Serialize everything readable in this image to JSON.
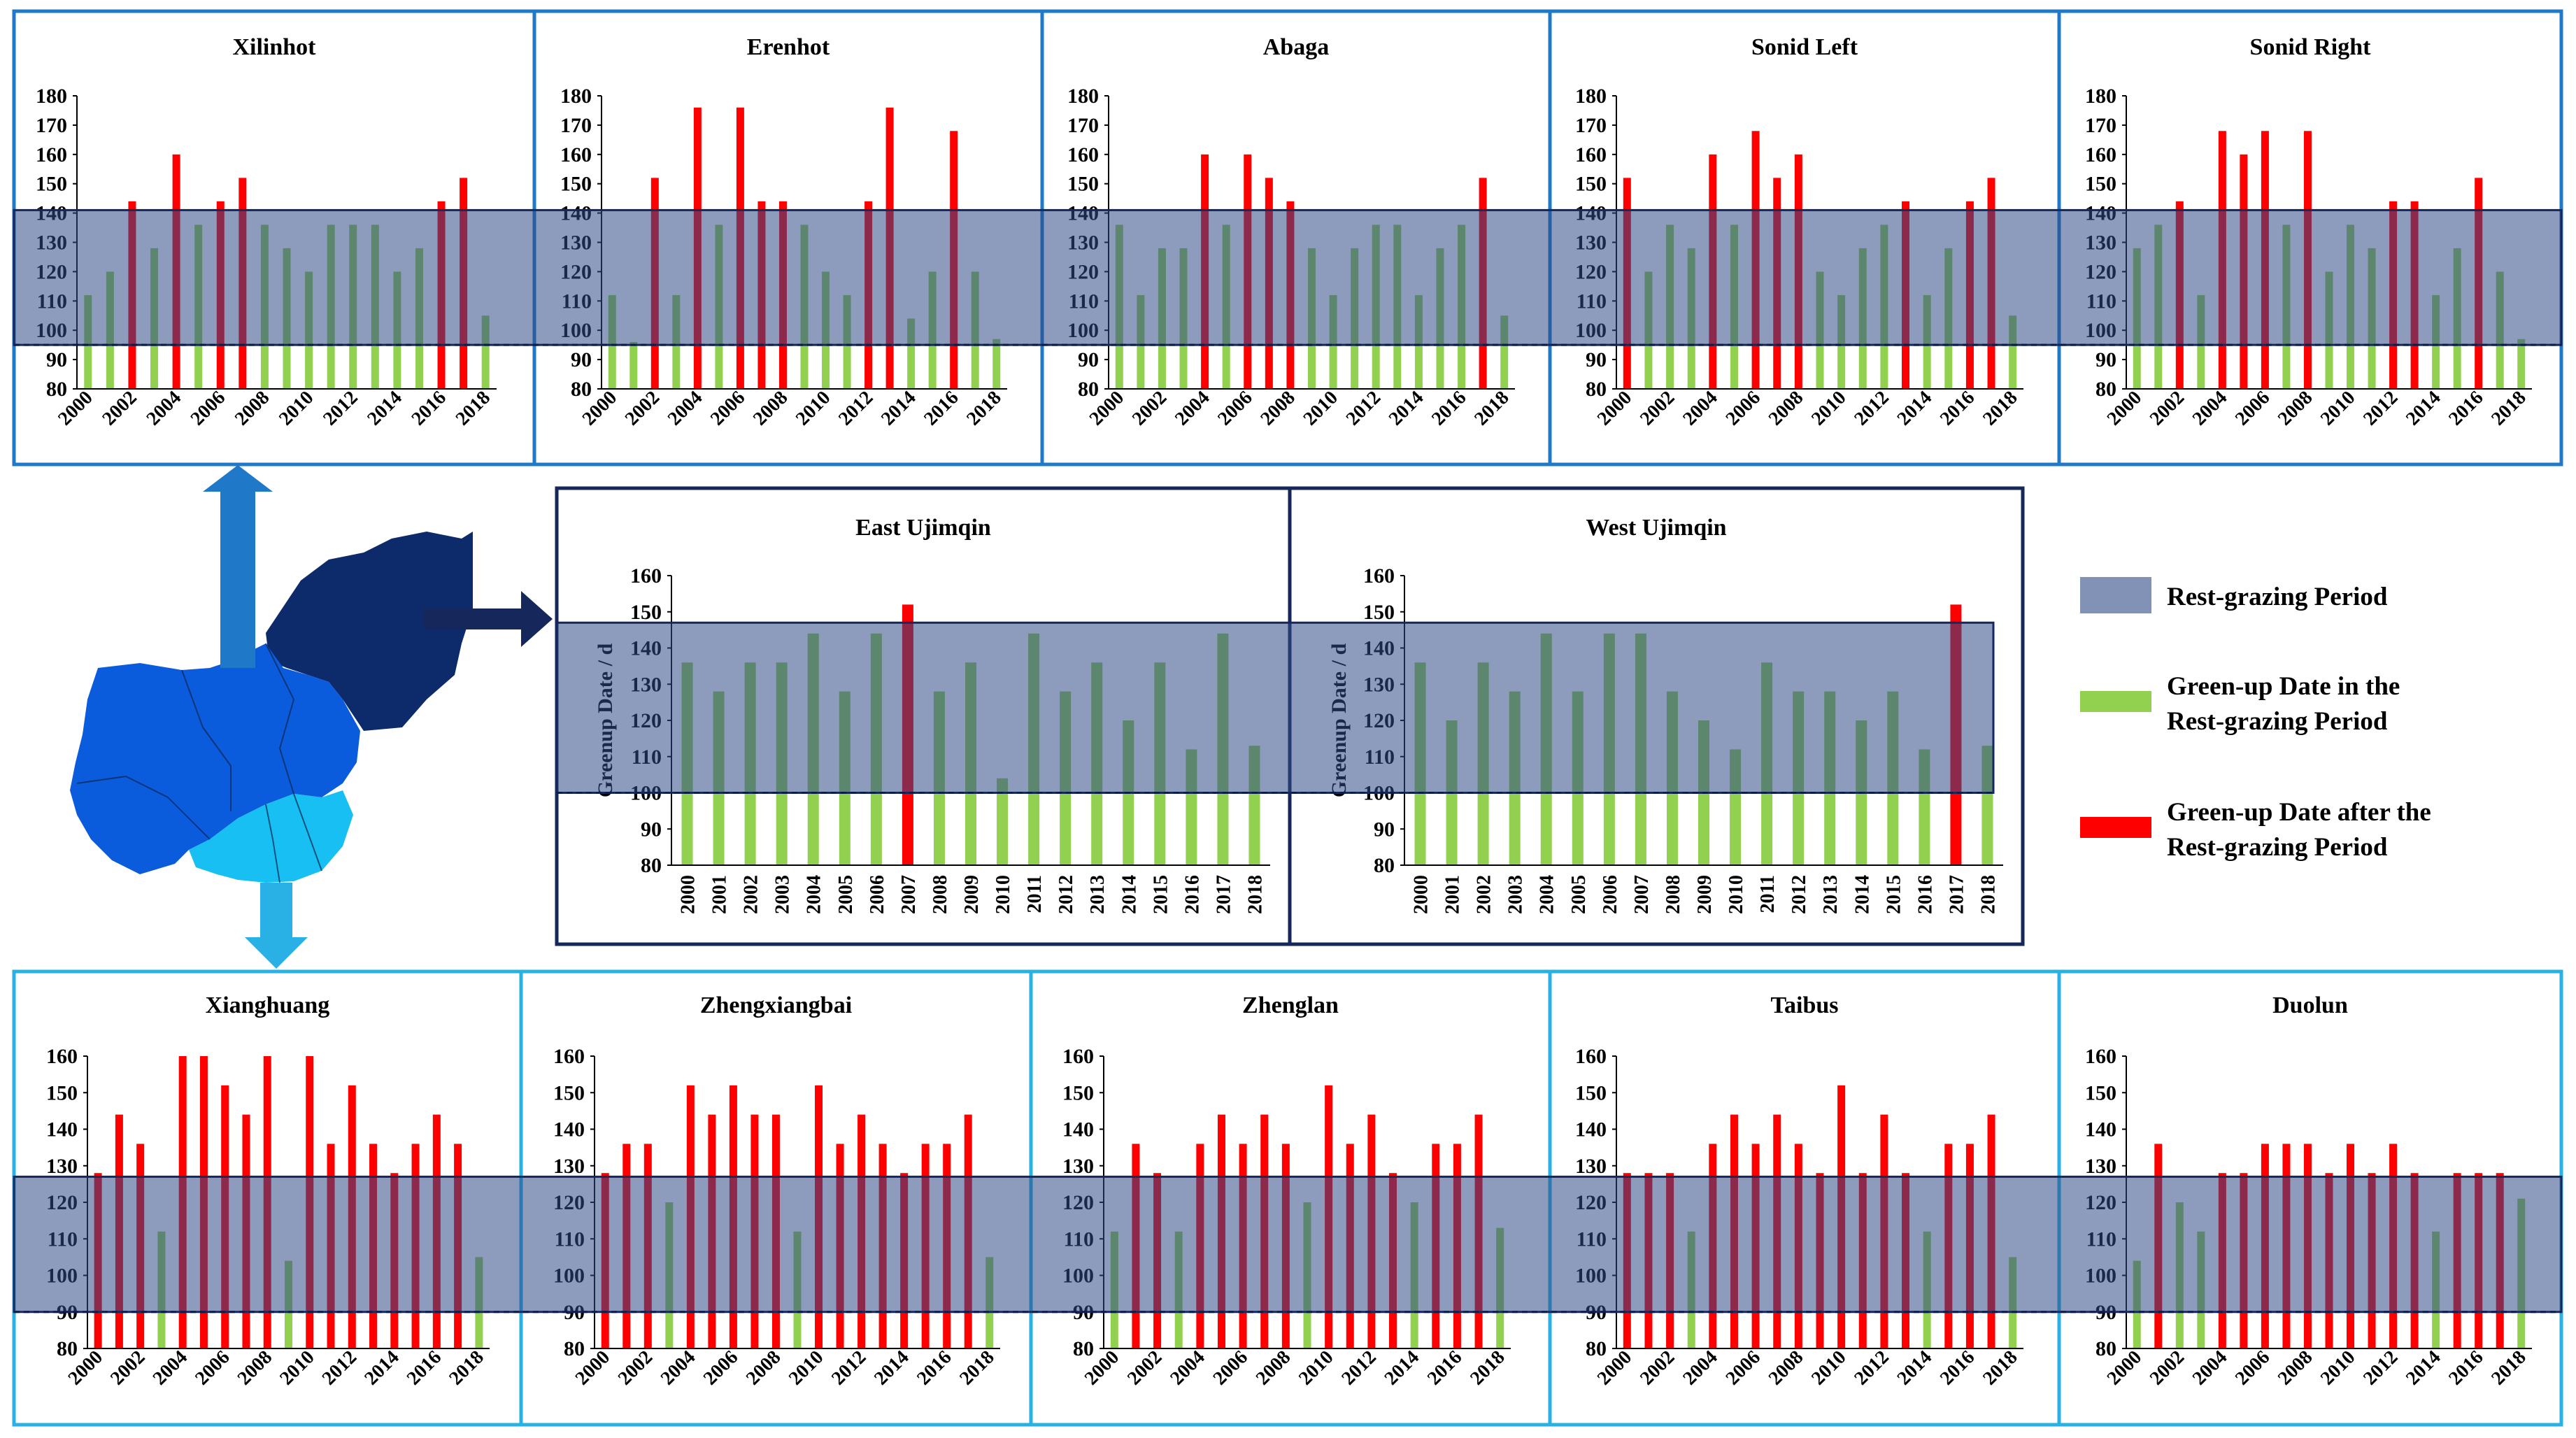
{
  "colors": {
    "green": "#92D050",
    "red": "#FF0000",
    "rest_band": "#2F4A86",
    "top_border": "#1F78C8",
    "middle_border": "#16275C",
    "bottom_border": "#29B0E4",
    "map_dark": "#0D2A6B",
    "map_mid": "#0A5CDC",
    "map_light": "#18BFF2",
    "arrow_up": "#1F78C8",
    "arrow_right": "#16275C",
    "arrow_down": "#29B0E4"
  },
  "legend": {
    "rest_period": "Rest-grazing Period",
    "green_in_period_line1": "Green-up Date in the",
    "green_in_period_line2": "Rest-grazing Period",
    "red_after_period_line1": "Green-up Date after the",
    "red_after_period_line2": "Rest-grazing Period"
  },
  "map": {
    "region_dark": "dark-blue-region",
    "region_mid": "mid-blue-region",
    "region_light": "light-blue-region"
  },
  "chart_data": [
    {
      "id": "xilinhot",
      "type": "bar",
      "title": "Xilinhot",
      "x": [
        2000,
        2001,
        2002,
        2003,
        2004,
        2005,
        2006,
        2007,
        2008,
        2009,
        2010,
        2011,
        2012,
        2013,
        2014,
        2015,
        2016,
        2017,
        2018
      ],
      "values": [
        112,
        120,
        144,
        128,
        160,
        136,
        144,
        152,
        136,
        128,
        120,
        136,
        136,
        136,
        120,
        128,
        144,
        152,
        105
      ],
      "after_period": [
        false,
        false,
        true,
        false,
        true,
        false,
        true,
        true,
        false,
        false,
        false,
        false,
        false,
        false,
        false,
        false,
        true,
        true,
        false
      ],
      "ylim": [
        80,
        180
      ],
      "yticks": [
        80,
        90,
        100,
        110,
        120,
        130,
        140,
        150,
        160,
        170,
        180
      ],
      "xtick_labels": [
        "2000",
        "2002",
        "2004",
        "2006",
        "2008",
        "2010",
        "2012",
        "2014",
        "2016",
        "2018"
      ],
      "rest_period": [
        95,
        141
      ],
      "ylabel": ""
    },
    {
      "id": "erenhot",
      "type": "bar",
      "title": "Erenhot",
      "x": [
        2000,
        2001,
        2002,
        2003,
        2004,
        2005,
        2006,
        2007,
        2008,
        2009,
        2010,
        2011,
        2012,
        2013,
        2014,
        2015,
        2016,
        2017,
        2018
      ],
      "values": [
        112,
        96,
        152,
        112,
        176,
        136,
        176,
        144,
        144,
        136,
        120,
        112,
        144,
        176,
        104,
        120,
        168,
        120,
        97
      ],
      "after_period": [
        false,
        false,
        true,
        false,
        true,
        false,
        true,
        true,
        true,
        false,
        false,
        false,
        true,
        true,
        false,
        false,
        true,
        false,
        false
      ],
      "ylim": [
        80,
        180
      ],
      "yticks": [
        80,
        90,
        100,
        110,
        120,
        130,
        140,
        150,
        160,
        170,
        180
      ],
      "xtick_labels": [
        "2000",
        "2002",
        "2004",
        "2006",
        "2008",
        "2010",
        "2012",
        "2014",
        "2016",
        "2018"
      ],
      "rest_period": [
        95,
        141
      ],
      "ylabel": ""
    },
    {
      "id": "abaga",
      "type": "bar",
      "title": "Abaga",
      "x": [
        2000,
        2001,
        2002,
        2003,
        2004,
        2005,
        2006,
        2007,
        2008,
        2009,
        2010,
        2011,
        2012,
        2013,
        2014,
        2015,
        2016,
        2017,
        2018
      ],
      "values": [
        136,
        112,
        128,
        128,
        160,
        136,
        160,
        152,
        144,
        128,
        112,
        128,
        136,
        136,
        112,
        128,
        136,
        152,
        105
      ],
      "after_period": [
        false,
        false,
        false,
        false,
        true,
        false,
        true,
        true,
        true,
        false,
        false,
        false,
        false,
        false,
        false,
        false,
        false,
        true,
        false
      ],
      "ylim": [
        80,
        180
      ],
      "yticks": [
        80,
        90,
        100,
        110,
        120,
        130,
        140,
        150,
        160,
        170,
        180
      ],
      "xtick_labels": [
        "2000",
        "2002",
        "2004",
        "2006",
        "2008",
        "2010",
        "2012",
        "2014",
        "2016",
        "2018"
      ],
      "rest_period": [
        95,
        141
      ],
      "ylabel": ""
    },
    {
      "id": "sonid-left",
      "type": "bar",
      "title": "Sonid Left",
      "x": [
        2000,
        2001,
        2002,
        2003,
        2004,
        2005,
        2006,
        2007,
        2008,
        2009,
        2010,
        2011,
        2012,
        2013,
        2014,
        2015,
        2016,
        2017,
        2018
      ],
      "values": [
        152,
        120,
        136,
        128,
        160,
        136,
        168,
        152,
        160,
        120,
        112,
        128,
        136,
        144,
        112,
        128,
        144,
        152,
        105
      ],
      "after_period": [
        true,
        false,
        false,
        false,
        true,
        false,
        true,
        true,
        true,
        false,
        false,
        false,
        false,
        true,
        false,
        false,
        true,
        true,
        false
      ],
      "ylim": [
        80,
        180
      ],
      "yticks": [
        80,
        90,
        100,
        110,
        120,
        130,
        140,
        150,
        160,
        170,
        180
      ],
      "xtick_labels": [
        "2000",
        "2002",
        "2004",
        "2006",
        "2008",
        "2010",
        "2012",
        "2014",
        "2016",
        "2018"
      ],
      "rest_period": [
        95,
        141
      ],
      "ylabel": ""
    },
    {
      "id": "sonid-right",
      "type": "bar",
      "title": "Sonid Right",
      "x": [
        2000,
        2001,
        2002,
        2003,
        2004,
        2005,
        2006,
        2007,
        2008,
        2009,
        2010,
        2011,
        2012,
        2013,
        2014,
        2015,
        2016,
        2017,
        2018
      ],
      "values": [
        128,
        136,
        144,
        112,
        168,
        160,
        168,
        136,
        168,
        120,
        136,
        128,
        144,
        144,
        112,
        128,
        152,
        120,
        97
      ],
      "after_period": [
        false,
        false,
        true,
        false,
        true,
        true,
        true,
        false,
        true,
        false,
        false,
        false,
        true,
        true,
        false,
        false,
        true,
        false,
        false
      ],
      "ylim": [
        80,
        180
      ],
      "yticks": [
        80,
        90,
        100,
        110,
        120,
        130,
        140,
        150,
        160,
        170,
        180
      ],
      "xtick_labels": [
        "2000",
        "2002",
        "2004",
        "2006",
        "2008",
        "2010",
        "2012",
        "2014",
        "2016",
        "2018"
      ],
      "rest_period": [
        95,
        141
      ],
      "ylabel": ""
    },
    {
      "id": "east-ujimqin",
      "type": "bar",
      "title": "East Ujimqin",
      "x": [
        2000,
        2001,
        2002,
        2003,
        2004,
        2005,
        2006,
        2007,
        2008,
        2009,
        2010,
        2011,
        2012,
        2013,
        2014,
        2015,
        2016,
        2017,
        2018
      ],
      "values": [
        136,
        128,
        136,
        136,
        144,
        128,
        144,
        152,
        128,
        136,
        104,
        144,
        128,
        136,
        120,
        136,
        112,
        144,
        113
      ],
      "after_period": [
        false,
        false,
        false,
        false,
        false,
        false,
        false,
        true,
        false,
        false,
        false,
        false,
        false,
        false,
        false,
        false,
        false,
        false,
        false
      ],
      "ylim": [
        80,
        160
      ],
      "yticks": [
        80,
        90,
        100,
        110,
        120,
        130,
        140,
        150,
        160
      ],
      "xtick_labels": [
        "2000",
        "2001",
        "2002",
        "2003",
        "2004",
        "2005",
        "2006",
        "2007",
        "2008",
        "2009",
        "2010",
        "2011",
        "2012",
        "2013",
        "2014",
        "2015",
        "2016",
        "2017",
        "2018"
      ],
      "rest_period": [
        100,
        147
      ],
      "ylabel": "Greenup Date / d"
    },
    {
      "id": "west-ujimqin",
      "type": "bar",
      "title": "West Ujimqin",
      "x": [
        2000,
        2001,
        2002,
        2003,
        2004,
        2005,
        2006,
        2007,
        2008,
        2009,
        2010,
        2011,
        2012,
        2013,
        2014,
        2015,
        2016,
        2017,
        2018
      ],
      "values": [
        136,
        120,
        136,
        128,
        144,
        128,
        144,
        144,
        128,
        120,
        112,
        136,
        128,
        128,
        120,
        128,
        112,
        152,
        113
      ],
      "after_period": [
        false,
        false,
        false,
        false,
        false,
        false,
        false,
        false,
        false,
        false,
        false,
        false,
        false,
        false,
        false,
        false,
        false,
        true,
        false
      ],
      "ylim": [
        80,
        160
      ],
      "yticks": [
        80,
        90,
        100,
        110,
        120,
        130,
        140,
        150,
        160
      ],
      "xtick_labels": [
        "2000",
        "2001",
        "2002",
        "2003",
        "2004",
        "2005",
        "2006",
        "2007",
        "2008",
        "2009",
        "2010",
        "2011",
        "2012",
        "2013",
        "2014",
        "2015",
        "2016",
        "2017",
        "2018"
      ],
      "rest_period": [
        100,
        147
      ],
      "ylabel": "Greenup Date / d"
    },
    {
      "id": "xianghuang",
      "type": "bar",
      "title": "Xianghuang",
      "x": [
        2000,
        2001,
        2002,
        2003,
        2004,
        2005,
        2006,
        2007,
        2008,
        2009,
        2010,
        2011,
        2012,
        2013,
        2014,
        2015,
        2016,
        2017,
        2018
      ],
      "values": [
        128,
        144,
        136,
        112,
        160,
        160,
        152,
        144,
        160,
        104,
        160,
        136,
        152,
        136,
        128,
        136,
        144,
        136,
        105
      ],
      "after_period": [
        true,
        true,
        true,
        false,
        true,
        true,
        true,
        true,
        true,
        false,
        true,
        true,
        true,
        true,
        true,
        true,
        true,
        true,
        false
      ],
      "ylim": [
        80,
        160
      ],
      "yticks": [
        80,
        90,
        100,
        110,
        120,
        130,
        140,
        150,
        160
      ],
      "xtick_labels": [
        "2000",
        "2002",
        "2004",
        "2006",
        "2008",
        "2010",
        "2012",
        "2014",
        "2016",
        "2018"
      ],
      "rest_period": [
        90,
        127
      ],
      "ylabel": ""
    },
    {
      "id": "zhengxiangbai",
      "type": "bar",
      "title": "Zhengxiangbai",
      "x": [
        2000,
        2001,
        2002,
        2003,
        2004,
        2005,
        2006,
        2007,
        2008,
        2009,
        2010,
        2011,
        2012,
        2013,
        2014,
        2015,
        2016,
        2017,
        2018
      ],
      "values": [
        128,
        136,
        136,
        120,
        152,
        144,
        152,
        144,
        144,
        112,
        152,
        136,
        144,
        136,
        128,
        136,
        136,
        144,
        105
      ],
      "after_period": [
        true,
        true,
        true,
        false,
        true,
        true,
        true,
        true,
        true,
        false,
        true,
        true,
        true,
        true,
        true,
        true,
        true,
        true,
        false
      ],
      "ylim": [
        80,
        160
      ],
      "yticks": [
        80,
        90,
        100,
        110,
        120,
        130,
        140,
        150,
        160
      ],
      "xtick_labels": [
        "2000",
        "2002",
        "2004",
        "2006",
        "2008",
        "2010",
        "2012",
        "2014",
        "2016",
        "2018"
      ],
      "rest_period": [
        90,
        127
      ],
      "ylabel": ""
    },
    {
      "id": "zhenglan",
      "type": "bar",
      "title": "Zhenglan",
      "x": [
        2000,
        2001,
        2002,
        2003,
        2004,
        2005,
        2006,
        2007,
        2008,
        2009,
        2010,
        2011,
        2012,
        2013,
        2014,
        2015,
        2016,
        2017,
        2018
      ],
      "values": [
        112,
        136,
        128,
        112,
        136,
        144,
        136,
        144,
        136,
        120,
        152,
        136,
        144,
        128,
        120,
        136,
        136,
        144,
        113
      ],
      "after_period": [
        false,
        true,
        true,
        false,
        true,
        true,
        true,
        true,
        true,
        false,
        true,
        true,
        true,
        true,
        false,
        true,
        true,
        true,
        false
      ],
      "ylim": [
        80,
        160
      ],
      "yticks": [
        80,
        90,
        100,
        110,
        120,
        130,
        140,
        150,
        160
      ],
      "xtick_labels": [
        "2000",
        "2002",
        "2004",
        "2006",
        "2008",
        "2010",
        "2012",
        "2014",
        "2016",
        "2018"
      ],
      "rest_period": [
        90,
        127
      ],
      "ylabel": ""
    },
    {
      "id": "taibus",
      "type": "bar",
      "title": "Taibus",
      "x": [
        2000,
        2001,
        2002,
        2003,
        2004,
        2005,
        2006,
        2007,
        2008,
        2009,
        2010,
        2011,
        2012,
        2013,
        2014,
        2015,
        2016,
        2017,
        2018
      ],
      "values": [
        128,
        128,
        128,
        112,
        136,
        144,
        136,
        144,
        136,
        128,
        152,
        128,
        144,
        128,
        112,
        136,
        136,
        144,
        105
      ],
      "after_period": [
        true,
        true,
        true,
        false,
        true,
        true,
        true,
        true,
        true,
        true,
        true,
        true,
        true,
        true,
        false,
        true,
        true,
        true,
        false
      ],
      "ylim": [
        80,
        160
      ],
      "yticks": [
        80,
        90,
        100,
        110,
        120,
        130,
        140,
        150,
        160
      ],
      "xtick_labels": [
        "2000",
        "2002",
        "2004",
        "2006",
        "2008",
        "2010",
        "2012",
        "2014",
        "2016",
        "2018"
      ],
      "rest_period": [
        90,
        127
      ],
      "ylabel": ""
    },
    {
      "id": "duolun",
      "type": "bar",
      "title": "Duolun",
      "x": [
        2000,
        2001,
        2002,
        2003,
        2004,
        2005,
        2006,
        2007,
        2008,
        2009,
        2010,
        2011,
        2012,
        2013,
        2014,
        2015,
        2016,
        2017,
        2018
      ],
      "values": [
        104,
        136,
        120,
        112,
        128,
        128,
        136,
        136,
        136,
        128,
        136,
        128,
        136,
        128,
        112,
        128,
        128,
        128,
        121
      ],
      "after_period": [
        false,
        true,
        false,
        false,
        true,
        true,
        true,
        true,
        true,
        true,
        true,
        true,
        true,
        true,
        false,
        true,
        true,
        true,
        false
      ],
      "ylim": [
        80,
        160
      ],
      "yticks": [
        80,
        90,
        100,
        110,
        120,
        130,
        140,
        150,
        160
      ],
      "xtick_labels": [
        "2000",
        "2002",
        "2004",
        "2006",
        "2008",
        "2010",
        "2012",
        "2014",
        "2016",
        "2018"
      ],
      "rest_period": [
        90,
        127
      ],
      "ylabel": ""
    }
  ]
}
